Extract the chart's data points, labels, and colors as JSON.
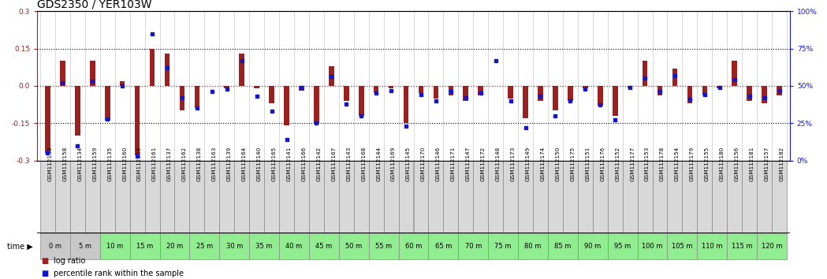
{
  "title": "GDS2350 / YER103W",
  "categories": [
    "GSM112133",
    "GSM112158",
    "GSM112134",
    "GSM112159",
    "GSM112135",
    "GSM112160",
    "GSM112136",
    "GSM112161",
    "GSM112137",
    "GSM112162",
    "GSM112138",
    "GSM112163",
    "GSM112139",
    "GSM112164",
    "GSM112140",
    "GSM112165",
    "GSM112141",
    "GSM112166",
    "GSM112142",
    "GSM112167",
    "GSM112143",
    "GSM112168",
    "GSM112144",
    "GSM112169",
    "GSM112145",
    "GSM112170",
    "GSM112146",
    "GSM112171",
    "GSM112147",
    "GSM112172",
    "GSM112148",
    "GSM112173",
    "GSM112149",
    "GSM112174",
    "GSM112150",
    "GSM112175",
    "GSM112151",
    "GSM112176",
    "GSM112152",
    "GSM112177",
    "GSM112153",
    "GSM112178",
    "GSM112154",
    "GSM112179",
    "GSM112155",
    "GSM112180",
    "GSM112156",
    "GSM112181",
    "GSM112157",
    "GSM112182"
  ],
  "log_ratio": [
    -0.27,
    0.1,
    -0.2,
    0.1,
    -0.14,
    0.02,
    -0.28,
    0.15,
    0.13,
    -0.1,
    -0.09,
    0.0,
    -0.01,
    0.13,
    -0.01,
    -0.07,
    -0.16,
    -0.02,
    -0.15,
    0.08,
    -0.06,
    -0.12,
    -0.03,
    -0.01,
    -0.15,
    -0.03,
    -0.05,
    -0.04,
    -0.06,
    -0.04,
    0.0,
    -0.05,
    -0.13,
    -0.06,
    -0.1,
    -0.06,
    -0.01,
    -0.08,
    -0.12,
    -0.01,
    0.1,
    -0.04,
    0.07,
    -0.07,
    -0.04,
    -0.01,
    0.1,
    -0.06,
    -0.07,
    -0.04
  ],
  "percentile": [
    5,
    52,
    10,
    53,
    28,
    50,
    3,
    85,
    62,
    42,
    35,
    46,
    48,
    67,
    43,
    33,
    14,
    49,
    25,
    56,
    38,
    30,
    45,
    47,
    23,
    44,
    40,
    46,
    42,
    45,
    67,
    40,
    22,
    43,
    30,
    40,
    48,
    37,
    27,
    49,
    55,
    46,
    57,
    41,
    44,
    49,
    54,
    43,
    42,
    47
  ],
  "time_labels": [
    "0 m",
    "5 m",
    "10 m",
    "15 m",
    "20 m",
    "25 m",
    "30 m",
    "35 m",
    "40 m",
    "45 m",
    "50 m",
    "55 m",
    "60 m",
    "65 m",
    "70 m",
    "75 m",
    "80 m",
    "85 m",
    "90 m",
    "95 m",
    "100 m",
    "105 m",
    "110 m",
    "115 m",
    "120 m"
  ],
  "ylim": [
    -0.3,
    0.3
  ],
  "bar_color": "#9B2020",
  "scatter_color": "#1515CC",
  "zero_line_color": "#CC2020",
  "title_fontsize": 10,
  "tick_fontsize": 6.5,
  "right_ylim": [
    0,
    100
  ],
  "right_yticks": [
    0,
    25,
    50,
    75,
    100
  ],
  "right_yticklabels": [
    "0%",
    "25%",
    "50%",
    "75%",
    "100%"
  ],
  "left_yticks": [
    -0.3,
    -0.15,
    0.0,
    0.15,
    0.3
  ],
  "time_row_green": "#90EE90",
  "time_row_gray": "#C8C8C8",
  "gsm_cell_bg": "#D8D8D8",
  "gsm_cell_border": "#888888"
}
